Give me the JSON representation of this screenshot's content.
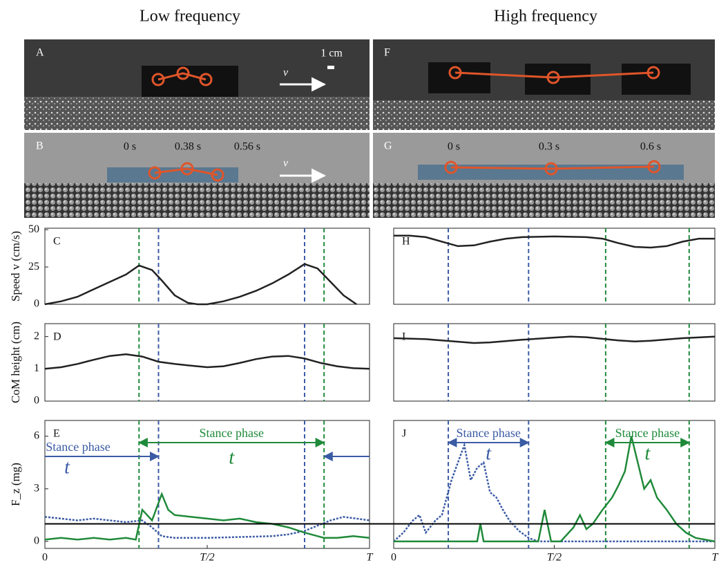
{
  "titles": [
    "Low frequency",
    "High frequency"
  ],
  "photos": [
    {
      "label": "A",
      "annotations": [
        "1 cm",
        "v"
      ]
    },
    {
      "label": "F",
      "annotations": []
    },
    {
      "label": "B",
      "annotations": [
        "0 s",
        "0.38 s",
        "0.56 s",
        "v"
      ]
    },
    {
      "label": "G",
      "annotations": [
        "0 s",
        "0.3 s",
        "0.6 s"
      ]
    }
  ],
  "chart_data": [
    {
      "type": "line",
      "panel": "C",
      "ylabel": "Speed v (cm/s)",
      "xlim": [
        0,
        1
      ],
      "ylim": [
        0,
        51
      ],
      "yticks": [
        0,
        25,
        50
      ],
      "vlines": [
        {
          "x": 0.29,
          "color": "#1f8a3a"
        },
        {
          "x": 0.35,
          "color": "#3b5ba5"
        },
        {
          "x": 0.8,
          "color": "#3b5ba5"
        },
        {
          "x": 0.86,
          "color": "#1f8a3a"
        }
      ],
      "series": [
        {
          "color": "#222222",
          "style": "solid",
          "x": [
            0,
            0.05,
            0.1,
            0.15,
            0.2,
            0.25,
            0.29,
            0.33,
            0.36,
            0.4,
            0.44,
            0.47,
            0.5,
            0.55,
            0.6,
            0.65,
            0.7,
            0.75,
            0.8,
            0.84,
            0.88,
            0.92,
            0.96
          ],
          "values": [
            0,
            2,
            5,
            10,
            15,
            20,
            26,
            23,
            16,
            6,
            1,
            0,
            0,
            2,
            5,
            9,
            14,
            20,
            27,
            24,
            15,
            6,
            0
          ]
        }
      ]
    },
    {
      "type": "line",
      "panel": "D",
      "ylabel": "CoM height (cm)",
      "xlim": [
        0,
        1
      ],
      "ylim": [
        0,
        2.4
      ],
      "yticks": [
        0,
        1,
        2
      ],
      "vlines": [
        {
          "x": 0.29,
          "color": "#1f8a3a"
        },
        {
          "x": 0.35,
          "color": "#3b5ba5"
        },
        {
          "x": 0.8,
          "color": "#3b5ba5"
        },
        {
          "x": 0.86,
          "color": "#1f8a3a"
        }
      ],
      "series": [
        {
          "color": "#222222",
          "style": "solid",
          "x": [
            0,
            0.05,
            0.1,
            0.15,
            0.2,
            0.25,
            0.3,
            0.35,
            0.4,
            0.45,
            0.5,
            0.55,
            0.6,
            0.65,
            0.7,
            0.75,
            0.8,
            0.85,
            0.9,
            0.95,
            1
          ],
          "values": [
            1.0,
            1.05,
            1.15,
            1.28,
            1.4,
            1.45,
            1.38,
            1.22,
            1.15,
            1.1,
            1.05,
            1.08,
            1.18,
            1.3,
            1.38,
            1.4,
            1.32,
            1.18,
            1.08,
            1.02,
            1.0
          ]
        }
      ]
    },
    {
      "type": "line",
      "panel": "E",
      "ylabel": "F_z (mg)",
      "xlim": [
        0,
        1
      ],
      "ylim": [
        -0.4,
        6.9
      ],
      "yticks": [
        0,
        3,
        6
      ],
      "xticks": [
        0,
        {
          "value": 0.5,
          "label": "T/2"
        },
        {
          "value": 1,
          "label": "T"
        }
      ],
      "hline": 1,
      "annotations": [
        "Stance phase",
        "t",
        "Stance phase",
        "t"
      ],
      "vlines": [
        {
          "x": 0.29,
          "color": "#1f8a3a"
        },
        {
          "x": 0.35,
          "color": "#3b5ba5"
        },
        {
          "x": 0.8,
          "color": "#3b5ba5"
        },
        {
          "x": 0.86,
          "color": "#1f8a3a"
        }
      ],
      "series": [
        {
          "color": "#3b5ba5",
          "style": "dotted",
          "x": [
            0,
            0.05,
            0.1,
            0.15,
            0.2,
            0.25,
            0.3,
            0.33,
            0.36,
            0.4,
            0.5,
            0.6,
            0.7,
            0.75,
            0.8,
            0.84,
            0.88,
            0.92,
            0.96,
            1
          ],
          "values": [
            1.4,
            1.3,
            1.2,
            1.3,
            1.2,
            1.1,
            1.2,
            0.8,
            0.3,
            0.2,
            0.2,
            0.25,
            0.3,
            0.4,
            0.6,
            0.9,
            1.2,
            1.4,
            1.3,
            1.2
          ]
        },
        {
          "color": "#1f8a3a",
          "style": "solid",
          "x": [
            0,
            0.05,
            0.1,
            0.15,
            0.2,
            0.25,
            0.28,
            0.3,
            0.33,
            0.36,
            0.38,
            0.4,
            0.45,
            0.5,
            0.55,
            0.6,
            0.65,
            0.7,
            0.75,
            0.8,
            0.86,
            0.9,
            0.95,
            1
          ],
          "values": [
            0.1,
            0.2,
            0.1,
            0.2,
            0.1,
            0.2,
            0.1,
            1.8,
            1.2,
            2.7,
            1.8,
            1.5,
            1.4,
            1.3,
            1.2,
            1.3,
            1.1,
            1.0,
            0.8,
            0.5,
            0.2,
            0.2,
            0.3,
            0.2
          ]
        }
      ]
    },
    {
      "type": "line",
      "panel": "H",
      "xlim": [
        0,
        1
      ],
      "ylim": [
        0,
        51
      ],
      "yticks": [],
      "vlines": [
        {
          "x": 0.17,
          "color": "#3b5ba5"
        },
        {
          "x": 0.42,
          "color": "#3b5ba5"
        },
        {
          "x": 0.66,
          "color": "#1f8a3a"
        },
        {
          "x": 0.92,
          "color": "#1f8a3a"
        }
      ],
      "series": [
        {
          "color": "#222222",
          "style": "solid",
          "x": [
            0,
            0.05,
            0.1,
            0.15,
            0.2,
            0.25,
            0.3,
            0.35,
            0.4,
            0.5,
            0.6,
            0.65,
            0.7,
            0.75,
            0.8,
            0.85,
            0.9,
            0.95,
            1
          ],
          "values": [
            46,
            46,
            45,
            42,
            39,
            39.5,
            42,
            44,
            45,
            45.5,
            45,
            44,
            41,
            38.5,
            38,
            39,
            42,
            44,
            44
          ]
        }
      ]
    },
    {
      "type": "line",
      "panel": "I",
      "xlim": [
        0,
        1
      ],
      "ylim": [
        0,
        2.4
      ],
      "yticks": [],
      "vlines": [
        {
          "x": 0.17,
          "color": "#3b5ba5"
        },
        {
          "x": 0.42,
          "color": "#3b5ba5"
        },
        {
          "x": 0.66,
          "color": "#1f8a3a"
        },
        {
          "x": 0.92,
          "color": "#1f8a3a"
        }
      ],
      "series": [
        {
          "color": "#222222",
          "style": "solid",
          "x": [
            0,
            0.1,
            0.2,
            0.25,
            0.3,
            0.4,
            0.5,
            0.55,
            0.6,
            0.7,
            0.75,
            0.8,
            0.9,
            1
          ],
          "values": [
            1.95,
            1.92,
            1.84,
            1.8,
            1.82,
            1.9,
            1.97,
            2.0,
            1.98,
            1.88,
            1.85,
            1.87,
            1.95,
            2.0
          ]
        }
      ]
    },
    {
      "type": "line",
      "panel": "J",
      "xlim": [
        0,
        1
      ],
      "ylim": [
        -0.4,
        6.9
      ],
      "yticks": [],
      "xticks": [
        0,
        {
          "value": 0.5,
          "label": "T/2"
        },
        {
          "value": 1,
          "label": "T"
        }
      ],
      "hline": 1,
      "annotations": [
        "Stance phase",
        "t",
        "Stance phase",
        "t"
      ],
      "vlines": [
        {
          "x": 0.17,
          "color": "#3b5ba5"
        },
        {
          "x": 0.42,
          "color": "#3b5ba5"
        },
        {
          "x": 0.66,
          "color": "#1f8a3a"
        },
        {
          "x": 0.92,
          "color": "#1f8a3a"
        }
      ],
      "series": [
        {
          "color": "#3b5ba5",
          "style": "dotted",
          "x": [
            0,
            0.03,
            0.06,
            0.08,
            0.1,
            0.13,
            0.15,
            0.18,
            0.2,
            0.22,
            0.24,
            0.26,
            0.28,
            0.3,
            0.32,
            0.34,
            0.36,
            0.39,
            0.42,
            0.45,
            1
          ],
          "values": [
            0,
            0.5,
            1.2,
            1.5,
            0.5,
            1.2,
            1.5,
            3.5,
            4.5,
            5.5,
            3.5,
            4.2,
            4.5,
            2.8,
            2.5,
            1.8,
            1.2,
            0.6,
            0.2,
            0,
            0
          ]
        },
        {
          "color": "#1f8a3a",
          "style": "solid",
          "x": [
            0,
            0.26,
            0.27,
            0.28,
            0.45,
            0.47,
            0.49,
            0.52,
            0.56,
            0.58,
            0.6,
            0.62,
            0.65,
            0.68,
            0.7,
            0.72,
            0.74,
            0.76,
            0.78,
            0.8,
            0.82,
            0.85,
            0.88,
            0.91,
            0.94,
            1
          ],
          "values": [
            0,
            0,
            1,
            0,
            0,
            1.8,
            0,
            0,
            0.8,
            1.5,
            0.7,
            1.0,
            1.8,
            2.5,
            3.2,
            4.0,
            6.0,
            4.5,
            3.0,
            3.5,
            2.5,
            1.8,
            1.0,
            0.5,
            0.2,
            0
          ]
        }
      ]
    }
  ]
}
